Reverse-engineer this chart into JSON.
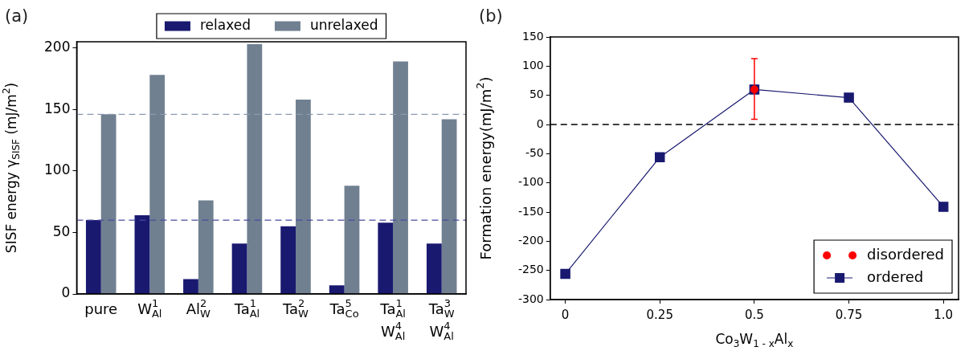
{
  "chart_data": [
    {
      "type": "bar",
      "title": "(a)",
      "ylabel": "SISF energy γ$_{SISF}$ (mJ/m$^{2}$)",
      "categories": [
        "pure",
        "W$^{1}$$_{Al}$",
        "Al$^{2}$$_{W}$",
        "Ta$^{1}$$_{Al}$",
        "Ta$^{2}$$_{W}$",
        "Ta$^{5}$$_{Co}$",
        "Ta$^{1}$$_{Al}$ W$^{4}$$_{Al}$",
        "Ta$^{3}$$_{W}$ W$^{4}$$_{Al}$"
      ],
      "series": [
        {
          "name": "relaxed",
          "color": "#191970",
          "values": [
            60,
            64,
            12,
            41,
            55,
            7,
            58,
            41
          ]
        },
        {
          "name": "unrelaxed",
          "color": "#708090",
          "values": [
            146,
            178,
            76,
            203,
            158,
            88,
            189,
            142
          ]
        }
      ],
      "ylim": [
        0,
        205
      ],
      "yticks": [
        0,
        50,
        100,
        150,
        200
      ],
      "ref_lines": [
        {
          "axis": "y",
          "value": 146,
          "color": "#8a9ab0",
          "line_style": "dashed"
        },
        {
          "axis": "y",
          "value": 60,
          "color": "#4a4aa0",
          "line_style": "dashed"
        }
      ],
      "grid": false,
      "legend": "top"
    },
    {
      "type": "line",
      "title": "(b)",
      "xlabel": "Co$_{3}$W$_{1 - x}$Al$_{x}$",
      "ylabel": "Formation energy(mJ/m$^{2}$)",
      "series": [
        {
          "name": "disordered",
          "type": "scatter",
          "color": "#ff0000",
          "marker": "circle",
          "x": [
            0.5
          ],
          "values": [
            60
          ],
          "errors": [
            [
              9,
              113
            ]
          ]
        },
        {
          "name": "ordered",
          "type": "line",
          "color": "#191970",
          "marker": "square",
          "x": [
            0,
            0.25,
            0.5,
            0.75,
            1
          ],
          "values": [
            -256,
            -56,
            60,
            46,
            -141
          ]
        }
      ],
      "xlim": [
        -0.04,
        1.04
      ],
      "xticks": [
        0,
        0.25,
        0.5,
        0.75,
        {
          "value": 1,
          "label": "1.0"
        }
      ],
      "ylim": [
        -300,
        150
      ],
      "yticks": [
        -300,
        -250,
        -200,
        -150,
        -100,
        -50,
        0,
        50,
        100,
        150
      ],
      "ref_lines": [
        {
          "axis": "y",
          "value": 0,
          "color": "#000000",
          "line_style": "dashed"
        }
      ],
      "grid": false,
      "legend": "bottom right"
    }
  ]
}
